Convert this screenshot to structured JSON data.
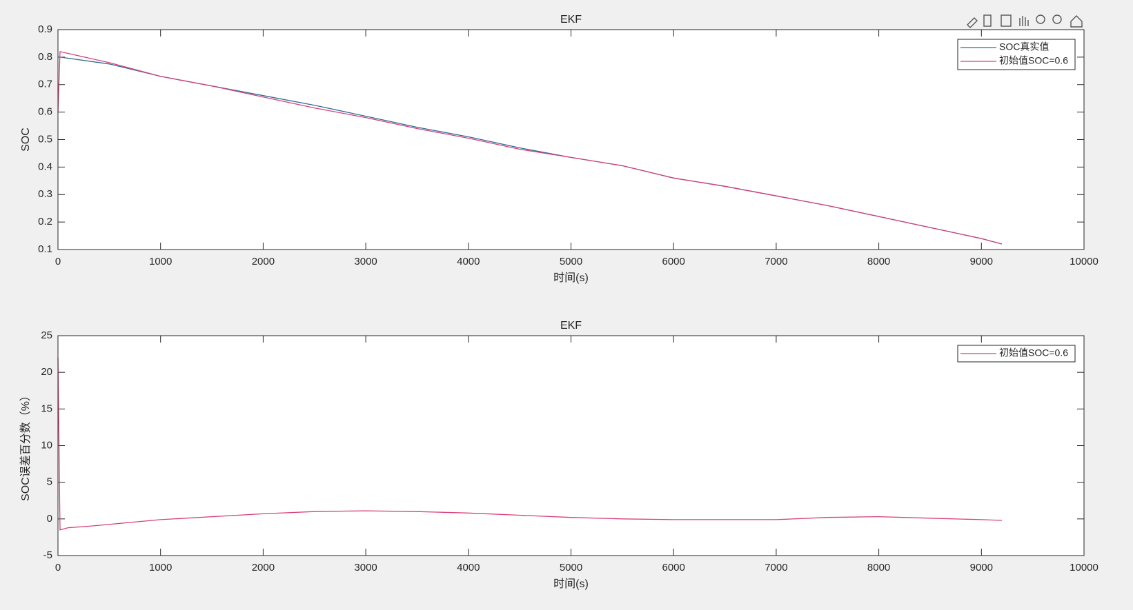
{
  "chart_data": [
    {
      "type": "line",
      "title": "EKF",
      "xlabel": "时间(s)",
      "ylabel": "SOC",
      "x": [
        0,
        20,
        500,
        1000,
        1500,
        2000,
        2500,
        3000,
        3500,
        4000,
        4500,
        5000,
        5500,
        6000,
        6500,
        7000,
        7500,
        8000,
        8500,
        9000,
        9200
      ],
      "series": [
        {
          "name": "SOC真实值",
          "color": "#2f6a96",
          "values": [
            0.8,
            0.8,
            0.775,
            0.73,
            0.695,
            0.66,
            0.625,
            0.585,
            0.545,
            0.51,
            0.47,
            0.435,
            0.405,
            0.36,
            0.33,
            0.295,
            0.26,
            0.22,
            0.18,
            0.14,
            0.12
          ]
        },
        {
          "name": "初始值SOC=0.6",
          "color": "#d6407a",
          "values": [
            0.6,
            0.82,
            0.78,
            0.73,
            0.695,
            0.655,
            0.615,
            0.58,
            0.54,
            0.505,
            0.465,
            0.435,
            0.405,
            0.36,
            0.33,
            0.295,
            0.26,
            0.22,
            0.18,
            0.14,
            0.12
          ]
        }
      ],
      "xlim": [
        0,
        10000
      ],
      "xticks": [
        0,
        1000,
        2000,
        3000,
        4000,
        5000,
        6000,
        7000,
        8000,
        9000,
        10000
      ],
      "ylim": [
        0.1,
        0.9
      ],
      "yticks": [
        0.1,
        0.2,
        0.3,
        0.4,
        0.5,
        0.6,
        0.7,
        0.8,
        0.9
      ],
      "legend": "northeast"
    },
    {
      "type": "line",
      "title": "EKF",
      "xlabel": "时间(s)",
      "ylabel": "SOC误差百分数（%）",
      "x": [
        0,
        20,
        100,
        300,
        1000,
        2000,
        2500,
        3000,
        3500,
        4000,
        4500,
        5000,
        5500,
        6000,
        6500,
        7000,
        7500,
        8000,
        8500,
        9000,
        9200
      ],
      "series": [
        {
          "name": "初始值SOC=0.6",
          "color": "#d6407a",
          "values": [
            22,
            -1.5,
            -1.2,
            -1,
            -0.1,
            0.7,
            1.0,
            1.1,
            1.0,
            0.8,
            0.5,
            0.2,
            0.0,
            -0.1,
            -0.1,
            -0.1,
            0.2,
            0.3,
            0.1,
            -0.1,
            -0.2
          ]
        }
      ],
      "xlim": [
        0,
        10000
      ],
      "xticks": [
        0,
        1000,
        2000,
        3000,
        4000,
        5000,
        6000,
        7000,
        8000,
        9000,
        10000
      ],
      "ylim": [
        -5,
        25
      ],
      "yticks": [
        -5,
        0,
        5,
        10,
        15,
        20,
        25
      ],
      "legend": "northeast"
    }
  ]
}
